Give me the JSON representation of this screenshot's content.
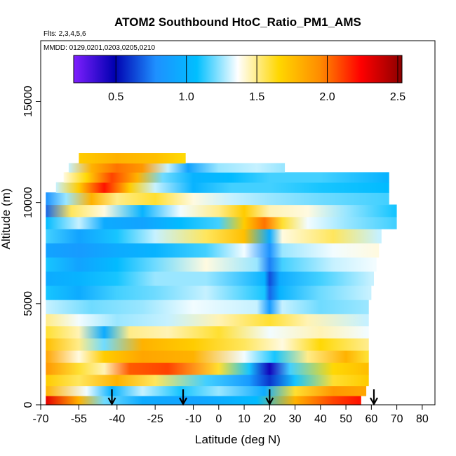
{
  "chart_data": {
    "type": "heatmap",
    "title": "ATOM2 Southbound HtoC_Ratio_PM1_AMS",
    "subtitle_flights": "Flts: 2,3,4,5,6",
    "subtitle_dates": "MMDD: 0129,0201,0203,0205,0210",
    "xlabel": "Latitude (deg N)",
    "ylabel": "Altitude (m)",
    "xlim": [
      -70,
      85
    ],
    "ylim": [
      0,
      18000
    ],
    "x_ticks": [
      -70,
      -55,
      -40,
      -25,
      -10,
      0,
      10,
      20,
      30,
      40,
      50,
      60,
      70,
      80
    ],
    "x_tick_labels": [
      "-70",
      "-55",
      "-40",
      "-25",
      "-10",
      "0",
      "10",
      "20",
      "30",
      "40",
      "50",
      "60",
      "70",
      "80"
    ],
    "y_ticks": [
      0,
      5000,
      10000,
      15000
    ],
    "y_tick_labels": [
      "0",
      "5000",
      "10000",
      "15000"
    ],
    "colorbar": {
      "min": 0.2,
      "max": 2.53,
      "ticks": [
        0.5,
        1.0,
        1.5,
        2.0,
        2.5
      ],
      "tick_labels": [
        "0.5",
        "1.0",
        "1.5",
        "2.0",
        "2.5"
      ],
      "colors": [
        "#7f1fff",
        "#0000b0",
        "#1e90ff",
        "#00bfff",
        "#ffffff",
        "#ffd700",
        "#ff8c00",
        "#ff0000",
        "#8b0000"
      ]
    },
    "arrows_latitude": [
      -42,
      -14,
      20,
      61
    ],
    "layers": [
      {
        "alt": 0,
        "top": 450,
        "lat_start": -68,
        "lat_end": 56,
        "segments": [
          [
            -68,
            2.3
          ],
          [
            -55,
            1.8
          ],
          [
            -45,
            1.2
          ],
          [
            -30,
            0.95
          ],
          [
            -10,
            0.9
          ],
          [
            15,
            1.05
          ],
          [
            30,
            1.8
          ],
          [
            45,
            2.1
          ],
          [
            55,
            2.2
          ]
        ]
      },
      {
        "alt": 450,
        "top": 950,
        "lat_start": -68,
        "lat_end": 58,
        "segments": [
          [
            -68,
            1.8
          ],
          [
            -52,
            1.35
          ],
          [
            -42,
            1.0
          ],
          [
            -30,
            1.3
          ],
          [
            -15,
            1.1
          ],
          [
            0,
            1.25
          ],
          [
            18,
            0.95
          ],
          [
            30,
            1.6
          ],
          [
            45,
            1.9
          ],
          [
            57,
            1.85
          ]
        ]
      },
      {
        "alt": 950,
        "top": 1500,
        "lat_start": -68,
        "lat_end": 59,
        "segments": [
          [
            -68,
            1.7
          ],
          [
            -55,
            1.55
          ],
          [
            -40,
            1.8
          ],
          [
            -25,
            1.55
          ],
          [
            -5,
            1.15
          ],
          [
            12,
            0.85
          ],
          [
            20,
            0.6
          ],
          [
            30,
            1.1
          ],
          [
            45,
            1.6
          ],
          [
            58,
            1.7
          ]
        ]
      },
      {
        "alt": 1500,
        "top": 2100,
        "lat_start": -68,
        "lat_end": 59,
        "segments": [
          [
            -68,
            1.9
          ],
          [
            -55,
            1.6
          ],
          [
            -45,
            1.45
          ],
          [
            -35,
            2.05
          ],
          [
            -20,
            2.1
          ],
          [
            0,
            1.6
          ],
          [
            12,
            1.1
          ],
          [
            20,
            0.45
          ],
          [
            28,
            1.15
          ],
          [
            45,
            1.65
          ],
          [
            58,
            1.75
          ]
        ]
      },
      {
        "alt": 2100,
        "top": 2700,
        "lat_start": -68,
        "lat_end": 59,
        "segments": [
          [
            -68,
            1.85
          ],
          [
            -55,
            1.4
          ],
          [
            -45,
            1.7
          ],
          [
            -30,
            1.85
          ],
          [
            -10,
            1.8
          ],
          [
            10,
            1.35
          ],
          [
            22,
            1.1
          ],
          [
            35,
            1.5
          ],
          [
            50,
            1.8
          ],
          [
            58,
            1.6
          ]
        ]
      },
      {
        "alt": 2700,
        "top": 3300,
        "lat_start": -68,
        "lat_end": 59,
        "segments": [
          [
            -68,
            1.75
          ],
          [
            -55,
            1.5
          ],
          [
            -45,
            1.2
          ],
          [
            -30,
            1.8
          ],
          [
            -10,
            1.7
          ],
          [
            10,
            1.55
          ],
          [
            25,
            1.4
          ],
          [
            40,
            1.65
          ],
          [
            58,
            1.5
          ]
        ]
      },
      {
        "alt": 3300,
        "top": 3900,
        "lat_start": -68,
        "lat_end": 59,
        "segments": [
          [
            -68,
            1.6
          ],
          [
            -55,
            1.45
          ],
          [
            -45,
            0.95
          ],
          [
            -35,
            1.5
          ],
          [
            -20,
            1.45
          ],
          [
            0,
            1.6
          ],
          [
            20,
            1.35
          ],
          [
            40,
            1.45
          ],
          [
            58,
            1.35
          ]
        ]
      },
      {
        "alt": 3900,
        "top": 4500,
        "lat_start": -68,
        "lat_end": 59,
        "segments": [
          [
            -68,
            1.5
          ],
          [
            -55,
            1.35
          ],
          [
            -40,
            1.25
          ],
          [
            -20,
            1.3
          ],
          [
            0,
            1.45
          ],
          [
            20,
            1.6
          ],
          [
            35,
            1.45
          ],
          [
            58,
            1.3
          ]
        ]
      },
      {
        "alt": 4500,
        "top": 5200,
        "lat_start": -68,
        "lat_end": 59,
        "segments": [
          [
            -68,
            1.3
          ],
          [
            -50,
            1.2
          ],
          [
            -30,
            1.25
          ],
          [
            -10,
            1.35
          ],
          [
            15,
            1.3
          ],
          [
            20,
            0.85
          ],
          [
            25,
            1.3
          ],
          [
            40,
            1.2
          ],
          [
            58,
            1.25
          ]
        ]
      },
      {
        "alt": 5200,
        "top": 5900,
        "lat_start": -68,
        "lat_end": 60,
        "segments": [
          [
            -68,
            1.1
          ],
          [
            -55,
            0.95
          ],
          [
            -40,
            1.15
          ],
          [
            -25,
            1.2
          ],
          [
            -5,
            1.3
          ],
          [
            18,
            1.1
          ],
          [
            20,
            0.7
          ],
          [
            24,
            1.0
          ],
          [
            40,
            1.2
          ],
          [
            59,
            1.3
          ]
        ]
      },
      {
        "alt": 5900,
        "top": 6600,
        "lat_start": -68,
        "lat_end": 61,
        "segments": [
          [
            -68,
            0.95
          ],
          [
            -55,
            1.0
          ],
          [
            -40,
            1.1
          ],
          [
            -25,
            1.25
          ],
          [
            -5,
            1.25
          ],
          [
            18,
            1.0
          ],
          [
            20,
            0.65
          ],
          [
            24,
            0.95
          ],
          [
            40,
            1.15
          ],
          [
            60,
            1.3
          ]
        ]
      },
      {
        "alt": 6600,
        "top": 7300,
        "lat_start": -68,
        "lat_end": 62,
        "segments": [
          [
            -68,
            1.1
          ],
          [
            -55,
            0.9
          ],
          [
            -40,
            1.05
          ],
          [
            -25,
            1.2
          ],
          [
            -5,
            1.4
          ],
          [
            15,
            1.25
          ],
          [
            20,
            0.75
          ],
          [
            25,
            1.15
          ],
          [
            45,
            1.3
          ],
          [
            61,
            1.35
          ]
        ]
      },
      {
        "alt": 7300,
        "top": 8000,
        "lat_start": -68,
        "lat_end": 63,
        "segments": [
          [
            -68,
            0.9
          ],
          [
            -55,
            0.85
          ],
          [
            -40,
            0.95
          ],
          [
            -25,
            1.0
          ],
          [
            -5,
            1.15
          ],
          [
            10,
            1.35
          ],
          [
            20,
            0.8
          ],
          [
            25,
            1.25
          ],
          [
            45,
            1.35
          ],
          [
            62,
            1.4
          ]
        ]
      },
      {
        "alt": 8000,
        "top": 8700,
        "lat_start": -68,
        "lat_end": 64,
        "segments": [
          [
            -68,
            1.15
          ],
          [
            -55,
            0.9
          ],
          [
            -40,
            1.1
          ],
          [
            -25,
            1.3
          ],
          [
            -5,
            1.55
          ],
          [
            10,
            1.75
          ],
          [
            20,
            0.95
          ],
          [
            25,
            1.4
          ],
          [
            45,
            1.55
          ],
          [
            63,
            1.3
          ]
        ]
      },
      {
        "alt": 8700,
        "top": 9300,
        "lat_start": -68,
        "lat_end": 70,
        "segments": [
          [
            -68,
            1.05
          ],
          [
            -55,
            1.3
          ],
          [
            -45,
            0.95
          ],
          [
            -30,
            0.9
          ],
          [
            -15,
            1.05
          ],
          [
            0,
            1.15
          ],
          [
            10,
            1.7
          ],
          [
            18,
            2.0
          ],
          [
            25,
            1.6
          ],
          [
            35,
            1.35
          ],
          [
            50,
            1.25
          ],
          [
            69,
            1.15
          ]
        ]
      },
      {
        "alt": 9300,
        "top": 9900,
        "lat_start": -68,
        "lat_end": 70,
        "segments": [
          [
            -68,
            0.7
          ],
          [
            -58,
            1.55
          ],
          [
            -45,
            1.4
          ],
          [
            -30,
            1.0
          ],
          [
            -15,
            1.35
          ],
          [
            0,
            1.5
          ],
          [
            10,
            1.7
          ],
          [
            20,
            1.45
          ],
          [
            35,
            1.4
          ],
          [
            50,
            1.25
          ],
          [
            69,
            1.1
          ]
        ]
      },
      {
        "alt": 9900,
        "top": 10500,
        "lat_start": -68,
        "lat_end": 67,
        "segments": [
          [
            -68,
            0.8
          ],
          [
            -60,
            1.25
          ],
          [
            -50,
            1.8
          ],
          [
            -40,
            1.5
          ],
          [
            -25,
            1.6
          ],
          [
            -10,
            1.4
          ],
          [
            5,
            1.3
          ],
          [
            20,
            1.25
          ],
          [
            40,
            1.2
          ],
          [
            66,
            1.15
          ]
        ]
      },
      {
        "alt": 10500,
        "top": 11000,
        "lat_start": -64,
        "lat_end": 67,
        "segments": [
          [
            -64,
            1.3
          ],
          [
            -55,
            1.7
          ],
          [
            -45,
            2.2
          ],
          [
            -35,
            1.7
          ],
          [
            -25,
            1.3
          ],
          [
            -10,
            1.0
          ],
          [
            5,
            1.15
          ],
          [
            20,
            1.15
          ],
          [
            40,
            1.1
          ],
          [
            66,
            1.05
          ]
        ]
      },
      {
        "alt": 11000,
        "top": 11500,
        "lat_start": -61,
        "lat_end": 67,
        "segments": [
          [
            -61,
            1.4
          ],
          [
            -52,
            1.65
          ],
          [
            -42,
            2.1
          ],
          [
            -32,
            1.8
          ],
          [
            -22,
            1.2
          ],
          [
            -10,
            1.0
          ],
          [
            5,
            1.05
          ],
          [
            20,
            1.15
          ],
          [
            40,
            1.15
          ],
          [
            66,
            1.0
          ]
        ]
      },
      {
        "alt": 11500,
        "top": 11950,
        "lat_start": -59,
        "lat_end": 26,
        "segments": [
          [
            -59,
            1.3
          ],
          [
            -50,
            1.8
          ],
          [
            -40,
            2.0
          ],
          [
            -30,
            1.9
          ],
          [
            -20,
            1.3
          ],
          [
            -12,
            0.9
          ],
          [
            0,
            1.25
          ],
          [
            15,
            1.3
          ],
          [
            25,
            1.25
          ]
        ]
      },
      {
        "alt": 11950,
        "top": 12450,
        "lat_start": -55,
        "lat_end": -13,
        "segments": [
          [
            -55,
            1.7
          ],
          [
            -40,
            1.8
          ],
          [
            -25,
            1.75
          ],
          [
            -14,
            1.65
          ]
        ]
      }
    ]
  }
}
